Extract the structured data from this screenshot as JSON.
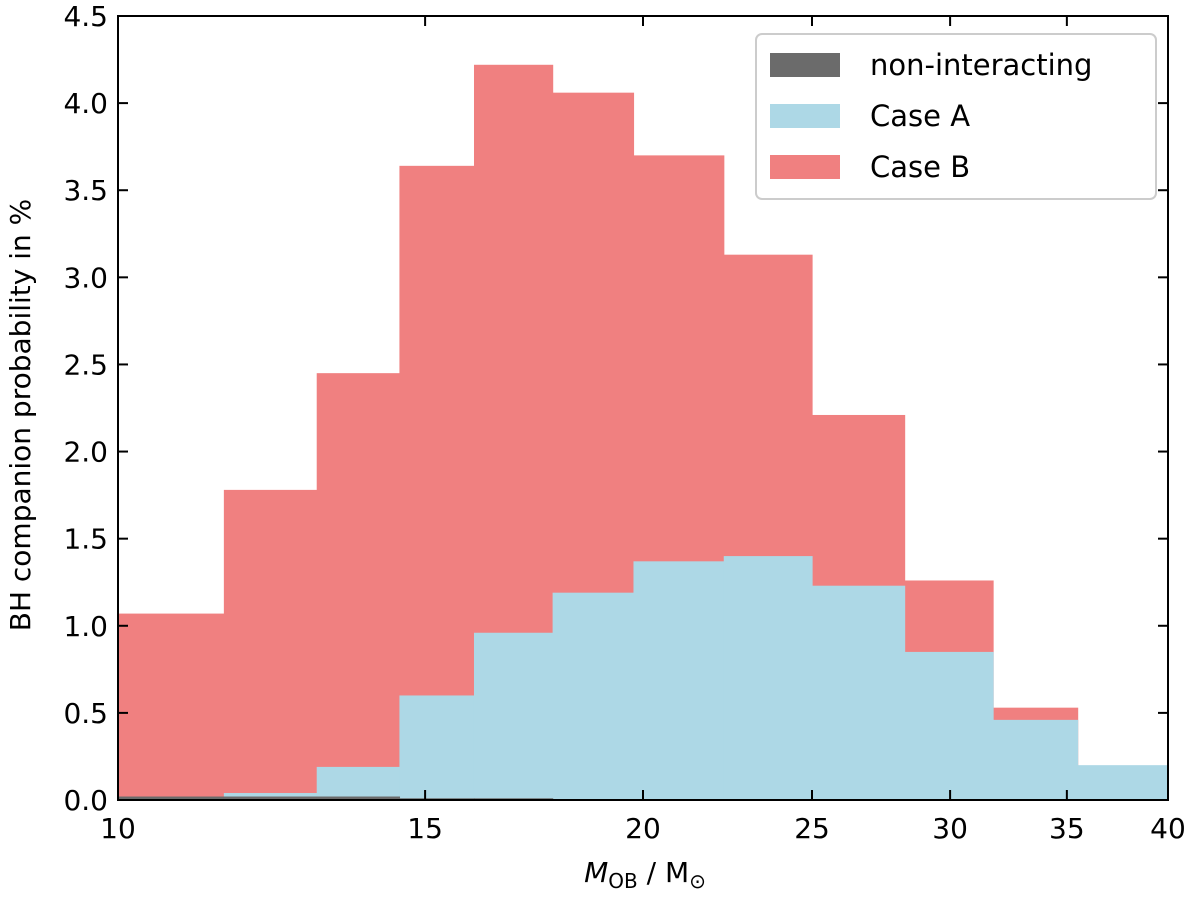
{
  "chart_data": {
    "type": "bar",
    "title": "",
    "xlabel": {
      "symbol": "M",
      "subscript": "OB",
      "separator": " / M",
      "unit_subscript": "⊙"
    },
    "ylabel": "BH companion probability in %",
    "xscale": "log",
    "xlim": [
      10,
      40
    ],
    "ylim": [
      0,
      4.5
    ],
    "xticks": [
      10,
      15,
      20,
      25,
      30,
      35,
      40
    ],
    "yticks": [
      "0.0",
      "0.5",
      "1.0",
      "1.5",
      "2.0",
      "2.5",
      "3.0",
      "3.5",
      "4.0",
      "4.5"
    ],
    "grid": false,
    "legend_position": "top-right",
    "bin_edges": [
      10.0,
      11.5,
      13.0,
      14.5,
      16.0,
      17.75,
      19.75,
      22.25,
      25.0,
      28.25,
      31.75,
      35.5,
      40.0
    ],
    "series": [
      {
        "name": "non-interacting",
        "color": "#6b6b6b",
        "values": [
          0.02,
          0.02,
          0.02,
          0.01,
          0.01,
          0.0,
          0.0,
          0.0,
          0.0,
          0.0,
          0.0,
          0.0
        ]
      },
      {
        "name": "Case A",
        "color": "#add8e6",
        "values": [
          0.0,
          0.04,
          0.19,
          0.6,
          0.96,
          1.19,
          1.37,
          1.4,
          1.23,
          0.85,
          0.46,
          0.2
        ]
      },
      {
        "name": "Case B",
        "color": "#f08080",
        "values": [
          1.07,
          1.78,
          2.45,
          3.64,
          4.22,
          4.06,
          3.7,
          3.13,
          2.21,
          1.26,
          0.53,
          0.0
        ]
      }
    ]
  }
}
